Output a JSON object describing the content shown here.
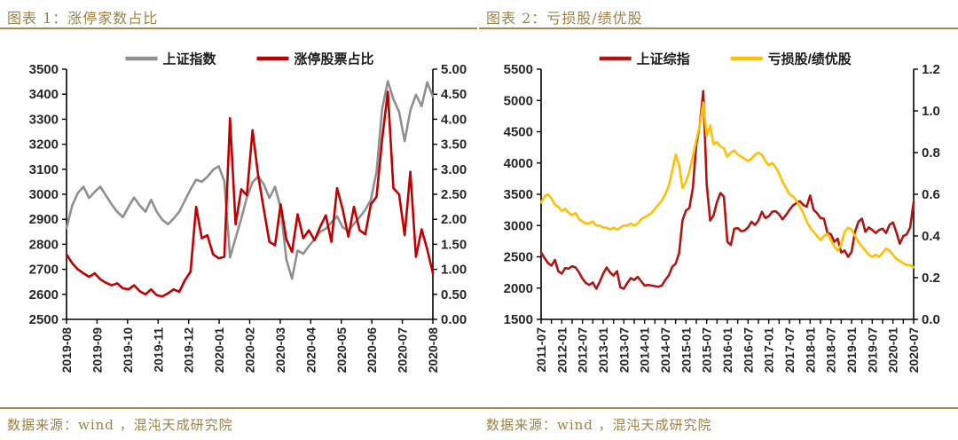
{
  "page": {
    "background": "#ffffff",
    "accent_color": "#9C8146",
    "rule_color": "#A6894B",
    "axis_text_color": "#262626",
    "axis_line_color": "#000000"
  },
  "footers": [
    "数据来源：wind ，混沌天成研究院",
    "数据来源：wind ，混沌天成研究院"
  ],
  "chart_data": [
    {
      "type": "line",
      "title": "图表 1：涨停家数占比",
      "legend_position": "top",
      "grid": false,
      "x_tick_labels": [
        "2019-08",
        "2019-09",
        "2019-10",
        "2019-11",
        "2019-12",
        "2020-01",
        "2020-02",
        "2020-03",
        "2020-04",
        "2020-05",
        "2020-06",
        "2020-07",
        "2020-08"
      ],
      "minor_x_ticks_between_labels": 0,
      "left_axis": {
        "range": [
          2500,
          3500
        ],
        "step": 100,
        "tick_labels_top_to_bottom": [
          "3500",
          "3400",
          "3300",
          "3200",
          "3100",
          "3000",
          "2900",
          "2800",
          "2700",
          "2600",
          "2500"
        ]
      },
      "right_axis": {
        "range": [
          0,
          5
        ],
        "step": 0.5,
        "tick_labels_top_to_bottom": [
          "5.00",
          "4.50",
          "4.00",
          "3.50",
          "3.00",
          "2.50",
          "2.00",
          "1.50",
          "1.00",
          "0.50",
          "0.00"
        ]
      },
      "series": [
        {
          "name": "上证指数",
          "axis": "left",
          "color": "#8F8F8F",
          "values": [
            2865,
            2955,
            3005,
            3030,
            2985,
            3010,
            3030,
            2995,
            2960,
            2930,
            2908,
            2950,
            2987,
            2955,
            2930,
            2978,
            2930,
            2898,
            2880,
            2903,
            2930,
            2975,
            3020,
            3058,
            3050,
            3070,
            3098,
            3112,
            3052,
            2748,
            2825,
            2902,
            2988,
            3048,
            3072,
            3040,
            2985,
            3030,
            2945,
            2740,
            2662,
            2775,
            2762,
            2793,
            2820,
            2850,
            2862,
            2888,
            2912,
            2868,
            2853,
            2882,
            2908,
            2938,
            2978,
            3090,
            3340,
            3452,
            3380,
            3330,
            3212,
            3335,
            3398,
            3352,
            3448,
            3390
          ]
        },
        {
          "name": "涨停股票占比",
          "axis": "right",
          "color": "#C00000",
          "values": [
            1.3,
            1.12,
            1.0,
            0.92,
            0.85,
            0.92,
            0.8,
            0.73,
            0.68,
            0.72,
            0.62,
            0.6,
            0.68,
            0.56,
            0.5,
            0.6,
            0.48,
            0.46,
            0.52,
            0.6,
            0.55,
            0.78,
            0.95,
            2.25,
            1.62,
            1.68,
            1.3,
            1.22,
            1.25,
            4.02,
            1.9,
            2.6,
            2.48,
            3.78,
            2.88,
            2.2,
            1.55,
            1.48,
            2.3,
            1.6,
            1.35,
            2.1,
            1.62,
            1.78,
            1.58,
            1.85,
            2.08,
            1.55,
            2.62,
            2.2,
            1.65,
            2.25,
            1.78,
            1.7,
            2.3,
            2.45,
            3.6,
            4.55,
            2.62,
            2.5,
            1.68,
            2.95,
            1.25,
            1.8,
            1.4,
            0.92
          ]
        }
      ]
    },
    {
      "type": "line",
      "title": "图表 2：亏损股/绩优股",
      "legend_position": "top",
      "grid": false,
      "x_tick_labels": [
        "2011-07",
        "2012-01",
        "2012-07",
        "2013-01",
        "2013-07",
        "2014-01",
        "2014-07",
        "2015-01",
        "2015-07",
        "2016-01",
        "2016-07",
        "2017-01",
        "2017-07",
        "2018-01",
        "2018-07",
        "2019-01",
        "2019-07",
        "2020-01",
        "2020-07"
      ],
      "minor_x_ticks_between_labels": 1,
      "left_axis": {
        "range": [
          1500,
          5500
        ],
        "step": 500,
        "tick_labels_top_to_bottom": [
          "5500",
          "5000",
          "4500",
          "4000",
          "3500",
          "3000",
          "2500",
          "2000",
          "1500"
        ]
      },
      "right_axis": {
        "range": [
          0,
          1.2
        ],
        "step": 0.2,
        "tick_labels_top_to_bottom": [
          "1.2",
          "1.0",
          "0.8",
          "0.6",
          "0.4",
          "0.2",
          "0.0"
        ]
      },
      "series": [
        {
          "name": "上证综指",
          "axis": "left",
          "color": "#B01513",
          "values": [
            2570,
            2480,
            2400,
            2360,
            2450,
            2270,
            2230,
            2320,
            2310,
            2350,
            2330,
            2250,
            2150,
            2080,
            2050,
            2090,
            1990,
            2100,
            2230,
            2330,
            2250,
            2200,
            2270,
            2010,
            1990,
            2080,
            2160,
            2130,
            2180,
            2110,
            2040,
            2050,
            2040,
            2030,
            2020,
            2040,
            2130,
            2200,
            2340,
            2390,
            2560,
            3080,
            3240,
            3280,
            3600,
            4300,
            4600,
            5150,
            3660,
            3080,
            3160,
            3380,
            3520,
            3460,
            2740,
            2690,
            2950,
            2960,
            2910,
            2920,
            2970,
            3060,
            3010,
            3080,
            3220,
            3120,
            3150,
            3220,
            3230,
            3180,
            3100,
            3170,
            3250,
            3320,
            3360,
            3390,
            3330,
            3300,
            3480,
            3250,
            3200,
            3120,
            3110,
            2880,
            2860,
            2740,
            2790,
            2570,
            2600,
            2500,
            2580,
            2900,
            3060,
            3110,
            2900,
            2970,
            2930,
            2880,
            2930,
            2950,
            2880,
            3010,
            3050,
            2890,
            2710,
            2830,
            2860,
            2970,
            3380
          ]
        },
        {
          "name": "亏损股/绩优股",
          "axis": "right",
          "color": "#FFC000",
          "values": [
            0.56,
            0.59,
            0.6,
            0.58,
            0.55,
            0.54,
            0.52,
            0.53,
            0.51,
            0.5,
            0.51,
            0.48,
            0.47,
            0.46,
            0.46,
            0.47,
            0.45,
            0.45,
            0.44,
            0.44,
            0.43,
            0.44,
            0.43,
            0.44,
            0.45,
            0.45,
            0.46,
            0.45,
            0.46,
            0.48,
            0.49,
            0.5,
            0.51,
            0.53,
            0.55,
            0.57,
            0.6,
            0.64,
            0.71,
            0.79,
            0.74,
            0.63,
            0.66,
            0.71,
            0.78,
            0.86,
            0.93,
            1.04,
            0.88,
            0.93,
            0.84,
            0.85,
            0.83,
            0.82,
            0.78,
            0.8,
            0.81,
            0.79,
            0.78,
            0.77,
            0.76,
            0.77,
            0.79,
            0.8,
            0.79,
            0.76,
            0.74,
            0.75,
            0.73,
            0.7,
            0.66,
            0.63,
            0.6,
            0.59,
            0.57,
            0.54,
            0.51,
            0.47,
            0.44,
            0.42,
            0.4,
            0.38,
            0.4,
            0.41,
            0.38,
            0.35,
            0.33,
            0.36,
            0.42,
            0.44,
            0.43,
            0.4,
            0.37,
            0.35,
            0.33,
            0.31,
            0.3,
            0.31,
            0.3,
            0.32,
            0.34,
            0.33,
            0.31,
            0.29,
            0.28,
            0.27,
            0.26,
            0.26,
            0.25
          ]
        }
      ]
    }
  ]
}
